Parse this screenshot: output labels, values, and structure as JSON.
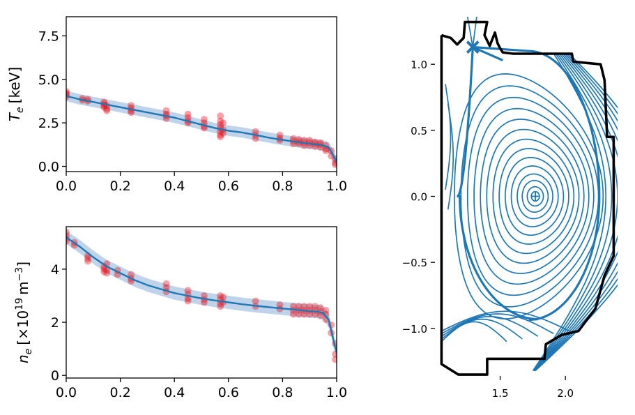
{
  "chart_data": [
    {
      "type": "scatter",
      "panel": "Te",
      "xlim": [
        0.0,
        1.0
      ],
      "ylim": [
        -0.3,
        8.6
      ],
      "x_ticks": [
        "0.0",
        "0.2",
        "0.4",
        "0.6",
        "0.8",
        "1.0"
      ],
      "y_ticks": [
        "0.0",
        "2.5",
        "5.0",
        "7.5"
      ],
      "ylabel_symbol": "T",
      "ylabel_sub": "e",
      "ylabel_unit": "[keV]",
      "fit_color": "#1f77b4",
      "point_color": "#e8141e",
      "band_color": "#a9c6e3",
      "fit": {
        "x": [
          0.0,
          0.05,
          0.1,
          0.15,
          0.2,
          0.25,
          0.3,
          0.35,
          0.4,
          0.45,
          0.5,
          0.55,
          0.6,
          0.65,
          0.7,
          0.75,
          0.8,
          0.85,
          0.9,
          0.93,
          0.95,
          0.97,
          0.98,
          0.99,
          1.0
        ],
        "y": [
          4.05,
          3.85,
          3.7,
          3.55,
          3.4,
          3.25,
          3.1,
          2.95,
          2.8,
          2.6,
          2.4,
          2.2,
          2.05,
          1.95,
          1.8,
          1.65,
          1.52,
          1.4,
          1.3,
          1.25,
          1.2,
          1.1,
          0.85,
          0.55,
          0.25
        ],
        "band_halfwidth": 0.3
      },
      "clusters": [
        {
          "x": 0.0,
          "y": [
            4.3,
            4.2,
            4.1,
            4.0
          ]
        },
        {
          "x": 0.06,
          "y": [
            3.9,
            3.8
          ]
        },
        {
          "x": 0.08,
          "y": [
            3.85,
            3.75
          ]
        },
        {
          "x": 0.14,
          "y": [
            3.7,
            3.6,
            3.5,
            3.4
          ]
        },
        {
          "x": 0.15,
          "y": [
            3.5,
            3.3,
            3.2
          ]
        },
        {
          "x": 0.24,
          "y": [
            3.5,
            3.35,
            3.2,
            3.1
          ]
        },
        {
          "x": 0.37,
          "y": [
            3.2,
            3.0,
            2.9,
            2.75
          ]
        },
        {
          "x": 0.45,
          "y": [
            3.0,
            2.8,
            2.6,
            2.5
          ]
        },
        {
          "x": 0.51,
          "y": [
            2.7,
            2.5,
            2.3,
            2.2
          ]
        },
        {
          "x": 0.57,
          "y": [
            2.9,
            2.6,
            2.4,
            2.2,
            2.0,
            1.8,
            1.7
          ]
        },
        {
          "x": 0.58,
          "y": [
            2.5,
            2.1,
            1.9
          ]
        },
        {
          "x": 0.7,
          "y": [
            2.0,
            1.8,
            1.6
          ]
        },
        {
          "x": 0.79,
          "y": [
            1.8,
            1.6,
            1.5
          ]
        },
        {
          "x": 0.84,
          "y": [
            1.6,
            1.45,
            1.3
          ]
        },
        {
          "x": 0.86,
          "y": [
            1.55,
            1.4,
            1.3
          ]
        },
        {
          "x": 0.88,
          "y": [
            1.5,
            1.35,
            1.2
          ]
        },
        {
          "x": 0.9,
          "y": [
            1.5,
            1.35,
            1.2
          ]
        },
        {
          "x": 0.92,
          "y": [
            1.4,
            1.3,
            1.15
          ]
        },
        {
          "x": 0.94,
          "y": [
            1.35,
            1.25,
            1.1
          ]
        },
        {
          "x": 0.96,
          "y": [
            1.2,
            1.0,
            0.9
          ]
        },
        {
          "x": 0.98,
          "y": [
            0.9,
            0.6
          ]
        },
        {
          "x": 0.995,
          "y": [
            0.4,
            0.2,
            0.1
          ]
        }
      ]
    },
    {
      "type": "scatter",
      "panel": "ne",
      "xlim": [
        0.0,
        1.0
      ],
      "ylim": [
        -0.1,
        5.6
      ],
      "x_ticks": [
        "0.0",
        "0.2",
        "0.4",
        "0.6",
        "0.8",
        "1.0"
      ],
      "y_ticks": [
        "0",
        "2",
        "4"
      ],
      "ylabel_symbol": "n",
      "ylabel_sub": "e",
      "ylabel_unit_pre": "[×10",
      "ylabel_unit_exp": "19",
      "ylabel_unit_post": "m",
      "ylabel_unit_exp2": "−3",
      "ylabel_unit_end": "]",
      "fit_color": "#1f77b4",
      "point_color": "#e8141e",
      "band_color": "#a9c6e3",
      "fit": {
        "x": [
          0.0,
          0.05,
          0.1,
          0.15,
          0.2,
          0.25,
          0.3,
          0.35,
          0.4,
          0.45,
          0.5,
          0.55,
          0.6,
          0.65,
          0.7,
          0.75,
          0.8,
          0.85,
          0.9,
          0.93,
          0.95,
          0.97,
          0.98,
          0.99,
          1.0
        ],
        "y": [
          5.2,
          4.85,
          4.45,
          4.1,
          3.85,
          3.6,
          3.4,
          3.25,
          3.1,
          3.0,
          2.9,
          2.82,
          2.75,
          2.68,
          2.62,
          2.57,
          2.52,
          2.47,
          2.42,
          2.4,
          2.35,
          2.1,
          1.7,
          1.25,
          0.85
        ],
        "band_halfwidth": 0.25
      },
      "clusters": [
        {
          "x": 0.0,
          "y": [
            5.4,
            5.25,
            5.15,
            5.05
          ]
        },
        {
          "x": 0.03,
          "y": [
            5.0,
            4.9
          ]
        },
        {
          "x": 0.08,
          "y": [
            4.5,
            4.4,
            4.3
          ]
        },
        {
          "x": 0.14,
          "y": [
            4.1,
            4.0,
            3.9
          ]
        },
        {
          "x": 0.15,
          "y": [
            4.2,
            3.95,
            3.85
          ]
        },
        {
          "x": 0.19,
          "y": [
            3.95,
            3.8
          ]
        },
        {
          "x": 0.24,
          "y": [
            3.8,
            3.65,
            3.55
          ]
        },
        {
          "x": 0.37,
          "y": [
            3.45,
            3.3,
            3.15
          ]
        },
        {
          "x": 0.45,
          "y": [
            3.2,
            3.05,
            2.9,
            2.8
          ]
        },
        {
          "x": 0.51,
          "y": [
            3.0,
            2.85,
            2.75
          ]
        },
        {
          "x": 0.57,
          "y": [
            3.0,
            2.85,
            2.7,
            2.6
          ]
        },
        {
          "x": 0.58,
          "y": [
            2.95,
            2.75
          ]
        },
        {
          "x": 0.7,
          "y": [
            2.8,
            2.6
          ]
        },
        {
          "x": 0.79,
          "y": [
            2.65,
            2.5
          ]
        },
        {
          "x": 0.84,
          "y": [
            2.6,
            2.45,
            2.3
          ]
        },
        {
          "x": 0.86,
          "y": [
            2.6,
            2.45,
            2.3
          ]
        },
        {
          "x": 0.88,
          "y": [
            2.6,
            2.45,
            2.3
          ]
        },
        {
          "x": 0.9,
          "y": [
            2.6,
            2.45,
            2.3
          ]
        },
        {
          "x": 0.92,
          "y": [
            2.6,
            2.45,
            2.3
          ]
        },
        {
          "x": 0.94,
          "y": [
            2.55,
            2.4,
            2.25
          ]
        },
        {
          "x": 0.96,
          "y": [
            2.45,
            2.3,
            2.1
          ]
        },
        {
          "x": 0.98,
          "y": [
            1.9,
            1.6
          ]
        },
        {
          "x": 0.995,
          "y": [
            1.2,
            0.8,
            0.6
          ]
        }
      ]
    },
    {
      "type": "contour",
      "panel": "equilibrium",
      "xlim": [
        1.0,
        2.4
      ],
      "ylim": [
        -1.36,
        1.36
      ],
      "x_ticks": [
        "1.5",
        "2.0"
      ],
      "y_ticks": [
        "1.0",
        "0.5",
        "0.0",
        "−0.5",
        "−1.0"
      ],
      "line_color": "#1f77b4",
      "wall_color": "#000000",
      "magnetic_axis": {
        "R": 1.77,
        "Z": 0.0
      },
      "x_point": {
        "R": 1.29,
        "Z": 1.13
      },
      "wall": [
        [
          1.05,
          1.22
        ],
        [
          1.12,
          1.2
        ],
        [
          1.17,
          1.15
        ],
        [
          1.22,
          1.2
        ],
        [
          1.23,
          1.32
        ],
        [
          1.4,
          1.32
        ],
        [
          1.38,
          1.22
        ],
        [
          1.42,
          1.14
        ],
        [
          1.46,
          1.24
        ],
        [
          1.48,
          1.16
        ],
        [
          1.5,
          1.12
        ],
        [
          1.52,
          1.09
        ],
        [
          1.6,
          1.08
        ],
        [
          2.05,
          1.08
        ],
        [
          2.06,
          1.02
        ],
        [
          2.27,
          1.0
        ],
        [
          2.3,
          0.88
        ],
        [
          2.32,
          0.45
        ],
        [
          2.37,
          0.45
        ],
        [
          2.37,
          -0.45
        ],
        [
          2.3,
          -0.6
        ],
        [
          2.23,
          -0.85
        ],
        [
          2.1,
          -1.02
        ],
        [
          1.97,
          -1.05
        ],
        [
          1.85,
          -1.12
        ],
        [
          1.84,
          -1.23
        ],
        [
          1.4,
          -1.23
        ],
        [
          1.4,
          -1.35
        ],
        [
          1.18,
          -1.35
        ],
        [
          1.05,
          -1.27
        ],
        [
          1.05,
          1.22
        ]
      ],
      "closed_surface_levels": [
        0.05,
        0.1,
        0.16,
        0.22,
        0.29,
        0.36,
        0.43,
        0.5,
        0.57,
        0.64,
        0.71,
        0.78,
        0.85,
        0.92
      ],
      "open_field_lines": 9
    }
  ]
}
